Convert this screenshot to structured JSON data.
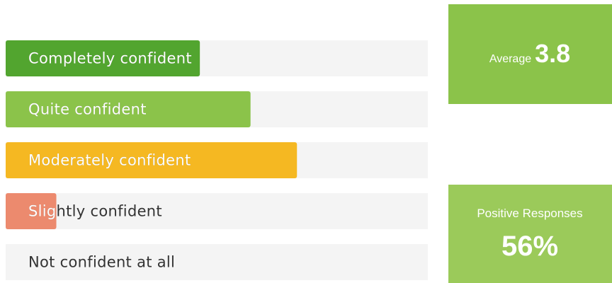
{
  "chart_data": {
    "type": "bar",
    "orientation": "horizontal",
    "categories": [
      "Completely confident",
      "Quite confident",
      "Moderately confident",
      "Slightly confident",
      "Not confident at all"
    ],
    "values": [
      46,
      58,
      69,
      12,
      0
    ],
    "colors": [
      "#52a52f",
      "#8bc34a",
      "#f5b822",
      "#ec8a6e",
      "#d9d9d9"
    ],
    "xlim": [
      0,
      100
    ]
  },
  "kpis": [
    {
      "label": "Average",
      "value": "3.8",
      "color": "#8bc34a"
    },
    {
      "label": "Positive Responses",
      "value": "56%",
      "color": "#9bca5a"
    }
  ]
}
